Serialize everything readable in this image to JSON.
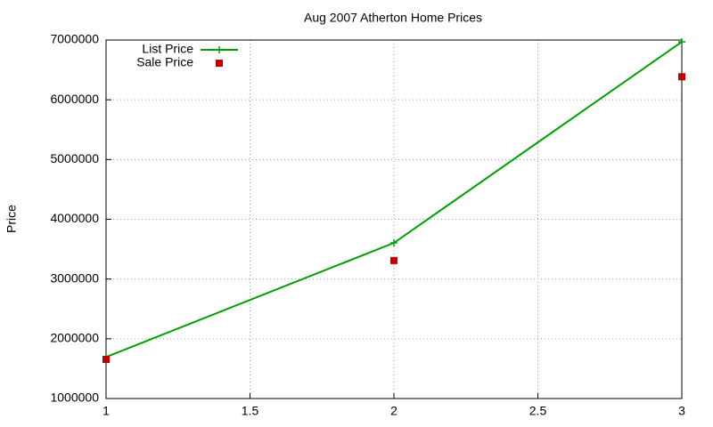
{
  "chart_data": {
    "type": "line",
    "title": "Aug 2007 Atherton Home Prices",
    "y_label": "Price",
    "x": [
      1,
      2,
      3
    ],
    "series": [
      {
        "name": "List Price",
        "color": "#00a000",
        "style": "linespoints",
        "values": [
          1695000,
          3605000,
          6970000
        ]
      },
      {
        "name": "Sale Price",
        "color": "#c00000",
        "style": "points",
        "values": [
          1655000,
          3310000,
          6385000
        ]
      }
    ],
    "xlim": [
      1,
      3
    ],
    "xticks": [
      1,
      1.5,
      2,
      2.5,
      3
    ],
    "ylim": [
      1000000,
      7000000
    ],
    "yticks": [
      1000000,
      2000000,
      3000000,
      4000000,
      5000000,
      6000000,
      7000000
    ],
    "grid": true,
    "legend": "top-left"
  }
}
